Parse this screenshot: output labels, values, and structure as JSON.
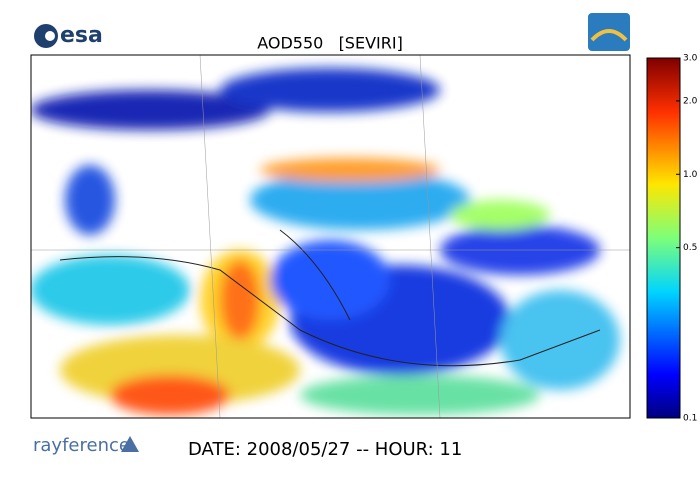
{
  "header": {
    "logo": "esa",
    "title": "AOD550   [SEVIRI]"
  },
  "colorbar": {
    "lim": [
      0.1,
      3
    ],
    "scale": "log",
    "ticks": [
      {
        "value": 3,
        "label": "3.0"
      },
      {
        "value": 2,
        "label": "2.0"
      },
      {
        "value": 1,
        "label": "1.0"
      },
      0.5,
      0.1
    ]
  },
  "footer": {
    "logo": "rayference",
    "date": "DATE: 2008/05/27 -- HOUR: 11"
  }
}
